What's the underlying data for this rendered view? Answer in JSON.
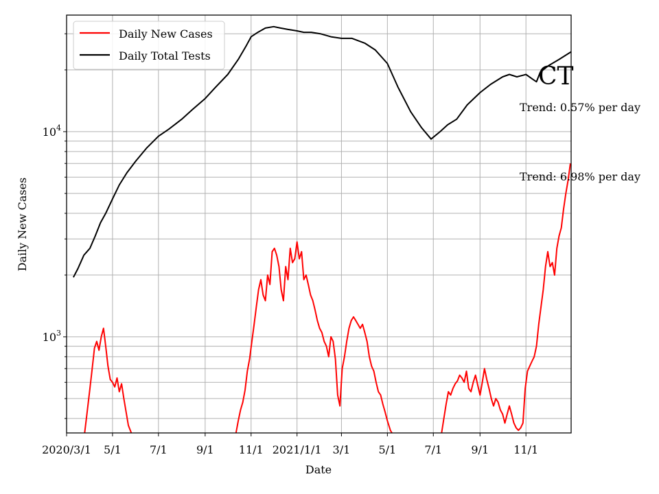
{
  "chart_data": {
    "type": "line",
    "title": "CT",
    "xlabel": "Date",
    "ylabel": "Daily New Cases",
    "yscale": "log",
    "ylim": [
      340,
      37000
    ],
    "xlim": [
      "2020-03-01",
      "2021-12-31"
    ],
    "grid": true,
    "legend_position": "top-left",
    "x_ticks": [
      {
        "date": "2020-03-01",
        "label": "2020/3/1"
      },
      {
        "date": "2020-05-01",
        "label": "5/1"
      },
      {
        "date": "2020-07-01",
        "label": "7/1"
      },
      {
        "date": "2020-09-01",
        "label": "9/1"
      },
      {
        "date": "2020-11-01",
        "label": "11/1"
      },
      {
        "date": "2021-01-01",
        "label": "2021/1/1"
      },
      {
        "date": "2021-03-01",
        "label": "3/1"
      },
      {
        "date": "2021-05-01",
        "label": "5/1"
      },
      {
        "date": "2021-07-01",
        "label": "7/1"
      },
      {
        "date": "2021-09-01",
        "label": "9/1"
      },
      {
        "date": "2021-11-01",
        "label": "11/1"
      }
    ],
    "y_ticks": [
      {
        "value": 1000,
        "base": "10",
        "exp": "3"
      },
      {
        "value": 10000,
        "base": "10",
        "exp": "4"
      }
    ],
    "annotations": [
      {
        "text": "Trend: 0.57% per day",
        "date": "2021-11-01",
        "value": 12000
      },
      {
        "text": "Trend: 6.98% per day",
        "date": "2021-11-01",
        "value": 5500
      }
    ],
    "series": [
      {
        "name": "Daily New Cases",
        "color": "#ff0000",
        "points": [
          [
            "2020-03-25",
            340
          ],
          [
            "2020-03-28",
            420
          ],
          [
            "2020-04-01",
            560
          ],
          [
            "2020-04-04",
            700
          ],
          [
            "2020-04-07",
            880
          ],
          [
            "2020-04-10",
            950
          ],
          [
            "2020-04-13",
            860
          ],
          [
            "2020-04-16",
            1000
          ],
          [
            "2020-04-19",
            1100
          ],
          [
            "2020-04-22",
            900
          ],
          [
            "2020-04-25",
            720
          ],
          [
            "2020-04-28",
            620
          ],
          [
            "2020-05-01",
            600
          ],
          [
            "2020-05-04",
            570
          ],
          [
            "2020-05-07",
            630
          ],
          [
            "2020-05-10",
            540
          ],
          [
            "2020-05-13",
            590
          ],
          [
            "2020-05-16",
            500
          ],
          [
            "2020-05-19",
            430
          ],
          [
            "2020-05-22",
            370
          ],
          [
            "2020-05-26",
            340
          ],
          null,
          [
            "2020-10-12",
            340
          ],
          [
            "2020-10-15",
            390
          ],
          [
            "2020-10-18",
            440
          ],
          [
            "2020-10-21",
            480
          ],
          [
            "2020-10-24",
            550
          ],
          [
            "2020-10-27",
            680
          ],
          [
            "2020-10-30",
            780
          ],
          [
            "2020-11-02",
            950
          ],
          [
            "2020-11-05",
            1150
          ],
          [
            "2020-11-08",
            1400
          ],
          [
            "2020-11-11",
            1700
          ],
          [
            "2020-11-14",
            1900
          ],
          [
            "2020-11-17",
            1600
          ],
          [
            "2020-11-20",
            1500
          ],
          [
            "2020-11-23",
            2000
          ],
          [
            "2020-11-26",
            1800
          ],
          [
            "2020-11-29",
            2600
          ],
          [
            "2020-12-02",
            2700
          ],
          [
            "2020-12-05",
            2500
          ],
          [
            "2020-12-08",
            2200
          ],
          [
            "2020-12-11",
            1700
          ],
          [
            "2020-12-14",
            1500
          ],
          [
            "2020-12-17",
            2200
          ],
          [
            "2020-12-20",
            1900
          ],
          [
            "2020-12-23",
            2700
          ],
          [
            "2020-12-26",
            2300
          ],
          [
            "2020-12-29",
            2400
          ],
          [
            "2021-01-01",
            2900
          ],
          [
            "2021-01-04",
            2400
          ],
          [
            "2021-01-07",
            2600
          ],
          [
            "2021-01-10",
            1900
          ],
          [
            "2021-01-13",
            2000
          ],
          [
            "2021-01-16",
            1800
          ],
          [
            "2021-01-19",
            1600
          ],
          [
            "2021-01-22",
            1500
          ],
          [
            "2021-01-25",
            1350
          ],
          [
            "2021-01-28",
            1200
          ],
          [
            "2021-01-31",
            1100
          ],
          [
            "2021-02-03",
            1050
          ],
          [
            "2021-02-06",
            950
          ],
          [
            "2021-02-09",
            900
          ],
          [
            "2021-02-12",
            800
          ],
          [
            "2021-02-15",
            1000
          ],
          [
            "2021-02-18",
            950
          ],
          [
            "2021-02-21",
            780
          ],
          [
            "2021-02-24",
            520
          ],
          [
            "2021-02-27",
            460
          ],
          [
            "2021-03-02",
            700
          ],
          [
            "2021-03-05",
            800
          ],
          [
            "2021-03-08",
            950
          ],
          [
            "2021-03-11",
            1100
          ],
          [
            "2021-03-14",
            1200
          ],
          [
            "2021-03-17",
            1250
          ],
          [
            "2021-03-20",
            1200
          ],
          [
            "2021-03-23",
            1150
          ],
          [
            "2021-03-26",
            1100
          ],
          [
            "2021-03-29",
            1150
          ],
          [
            "2021-04-01",
            1050
          ],
          [
            "2021-04-04",
            950
          ],
          [
            "2021-04-07",
            800
          ],
          [
            "2021-04-10",
            720
          ],
          [
            "2021-04-13",
            680
          ],
          [
            "2021-04-16",
            600
          ],
          [
            "2021-04-19",
            540
          ],
          [
            "2021-04-22",
            520
          ],
          [
            "2021-04-25",
            470
          ],
          [
            "2021-04-28",
            430
          ],
          [
            "2021-05-01",
            390
          ],
          [
            "2021-05-05",
            350
          ],
          [
            "2021-05-07",
            340
          ],
          null,
          [
            "2021-07-12",
            340
          ],
          [
            "2021-07-15",
            400
          ],
          [
            "2021-07-18",
            470
          ],
          [
            "2021-07-21",
            540
          ],
          [
            "2021-07-24",
            520
          ],
          [
            "2021-07-27",
            560
          ],
          [
            "2021-07-30",
            590
          ],
          [
            "2021-08-02",
            610
          ],
          [
            "2021-08-05",
            650
          ],
          [
            "2021-08-08",
            630
          ],
          [
            "2021-08-11",
            600
          ],
          [
            "2021-08-14",
            680
          ],
          [
            "2021-08-17",
            560
          ],
          [
            "2021-08-20",
            540
          ],
          [
            "2021-08-23",
            600
          ],
          [
            "2021-08-26",
            650
          ],
          [
            "2021-08-29",
            580
          ],
          [
            "2021-09-01",
            520
          ],
          [
            "2021-09-04",
            600
          ],
          [
            "2021-09-07",
            700
          ],
          [
            "2021-09-10",
            620
          ],
          [
            "2021-09-13",
            560
          ],
          [
            "2021-09-16",
            500
          ],
          [
            "2021-09-19",
            460
          ],
          [
            "2021-09-22",
            500
          ],
          [
            "2021-09-25",
            480
          ],
          [
            "2021-09-28",
            440
          ],
          [
            "2021-10-01",
            420
          ],
          [
            "2021-10-04",
            380
          ],
          [
            "2021-10-07",
            420
          ],
          [
            "2021-10-10",
            460
          ],
          [
            "2021-10-13",
            420
          ],
          [
            "2021-10-16",
            380
          ],
          [
            "2021-10-19",
            360
          ],
          [
            "2021-10-22",
            350
          ],
          [
            "2021-10-25",
            360
          ],
          [
            "2021-10-28",
            380
          ],
          [
            "2021-10-31",
            560
          ],
          [
            "2021-11-03",
            680
          ],
          [
            "2021-11-06",
            720
          ],
          [
            "2021-11-09",
            760
          ],
          [
            "2021-11-12",
            800
          ],
          [
            "2021-11-15",
            900
          ],
          [
            "2021-11-18",
            1150
          ],
          [
            "2021-11-21",
            1400
          ],
          [
            "2021-11-24",
            1700
          ],
          [
            "2021-11-27",
            2200
          ],
          [
            "2021-11-30",
            2600
          ],
          [
            "2021-12-03",
            2200
          ],
          [
            "2021-12-06",
            2300
          ],
          [
            "2021-12-09",
            2000
          ],
          [
            "2021-12-12",
            2700
          ],
          [
            "2021-12-15",
            3100
          ],
          [
            "2021-12-18",
            3400
          ],
          [
            "2021-12-21",
            4200
          ],
          [
            "2021-12-24",
            5000
          ],
          [
            "2021-12-27",
            5800
          ],
          [
            "2021-12-30",
            7000
          ]
        ]
      },
      {
        "name": "Daily Total Tests",
        "color": "#000000",
        "points": [
          [
            "2020-03-10",
            1950
          ],
          [
            "2020-03-16",
            2150
          ],
          [
            "2020-03-24",
            2500
          ],
          [
            "2020-04-01",
            2700
          ],
          [
            "2020-04-08",
            3100
          ],
          [
            "2020-04-15",
            3600
          ],
          [
            "2020-04-22",
            4000
          ],
          [
            "2020-05-01",
            4700
          ],
          [
            "2020-05-10",
            5500
          ],
          [
            "2020-05-20",
            6300
          ],
          [
            "2020-06-01",
            7200
          ],
          [
            "2020-06-15",
            8300
          ],
          [
            "2020-07-01",
            9500
          ],
          [
            "2020-07-15",
            10300
          ],
          [
            "2020-08-01",
            11500
          ],
          [
            "2020-08-15",
            12800
          ],
          [
            "2020-09-01",
            14500
          ],
          [
            "2020-09-15",
            16500
          ],
          [
            "2020-10-01",
            19000
          ],
          [
            "2020-10-15",
            22500
          ],
          [
            "2020-10-25",
            26000
          ],
          [
            "2020-11-01",
            29000
          ],
          [
            "2020-11-10",
            30500
          ],
          [
            "2020-11-20",
            32000
          ],
          [
            "2020-12-01",
            32500
          ],
          [
            "2020-12-10",
            32000
          ],
          [
            "2020-12-20",
            31500
          ],
          [
            "2021-01-01",
            31000
          ],
          [
            "2021-01-10",
            30500
          ],
          [
            "2021-01-20",
            30500
          ],
          [
            "2021-02-01",
            30000
          ],
          [
            "2021-02-15",
            29000
          ],
          [
            "2021-03-01",
            28500
          ],
          [
            "2021-03-15",
            28500
          ],
          [
            "2021-04-01",
            27000
          ],
          [
            "2021-04-15",
            25000
          ],
          [
            "2021-05-01",
            21500
          ],
          [
            "2021-05-15",
            16500
          ],
          [
            "2021-06-01",
            12500
          ],
          [
            "2021-06-15",
            10500
          ],
          [
            "2021-06-28",
            9200
          ],
          [
            "2021-07-10",
            10000
          ],
          [
            "2021-07-20",
            10800
          ],
          [
            "2021-08-01",
            11500
          ],
          [
            "2021-08-15",
            13500
          ],
          [
            "2021-09-01",
            15500
          ],
          [
            "2021-09-15",
            17000
          ],
          [
            "2021-10-01",
            18500
          ],
          [
            "2021-10-10",
            19000
          ],
          [
            "2021-10-20",
            18500
          ],
          [
            "2021-11-01",
            19000
          ],
          [
            "2021-11-10",
            18000
          ],
          [
            "2021-11-15",
            17500
          ],
          [
            "2021-11-20",
            19500
          ],
          [
            "2021-12-01",
            21000
          ],
          [
            "2021-12-15",
            22500
          ],
          [
            "2021-12-31",
            24500
          ]
        ]
      }
    ]
  }
}
